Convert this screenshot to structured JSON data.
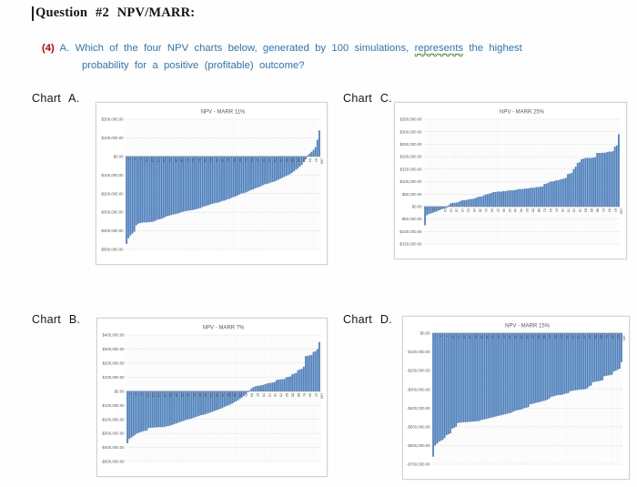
{
  "header": {
    "title": "Question #2 NPV/MARR:"
  },
  "question": {
    "number": "(4)",
    "letter": "A.",
    "line1_start": "Which of the four NPV charts below, generated by 100 simulations,",
    "underlined_word": "represents",
    "line1_end": "the highest",
    "line2": "probability for a positive (profitable) outcome?"
  },
  "colors": {
    "bar": "#4f81bd",
    "question_text": "#2e74b6",
    "question_number": "#c00000",
    "chart_text": "#595959",
    "gridline": "#e0e0e0",
    "zero_line": "#a8a8a8",
    "squiggle": "#52a24a"
  },
  "x_ticks": [
    1,
    4,
    7,
    10,
    13,
    16,
    19,
    22,
    25,
    28,
    31,
    34,
    37,
    40,
    43,
    46,
    49,
    52,
    55,
    58,
    61,
    64,
    67,
    70,
    73,
    76,
    79,
    82,
    85,
    88,
    91,
    94,
    97,
    100
  ],
  "chart_data": [
    {
      "type": "bar",
      "label": "Chart A.",
      "title": "NPV - MARR 11%",
      "xlabel": "",
      "ylabel": "",
      "ylim": [
        -500000,
        200000
      ],
      "y_step": 100000,
      "y_ticks": [
        "$200,000.00",
        "$100,000.00",
        "$0.00",
        "-$100,000.00",
        "-$200,000.00",
        "-$300,000.00",
        "-$400,000.00",
        "-$500,000.00"
      ],
      "x": "simulation 1-100 (sorted ascending)",
      "values": [
        -470000,
        -440000,
        -425000,
        -415000,
        -405000,
        -370000,
        -362000,
        -358000,
        -356000,
        -355000,
        -355000,
        -354000,
        -353000,
        -352000,
        -350000,
        -345000,
        -340000,
        -338000,
        -335000,
        -330000,
        -325000,
        -320000,
        -318000,
        -315000,
        -312000,
        -310000,
        -308000,
        -305000,
        -300000,
        -298000,
        -295000,
        -293000,
        -291000,
        -290000,
        -288000,
        -285000,
        -283000,
        -280000,
        -278000,
        -272000,
        -268000,
        -265000,
        -262000,
        -258000,
        -255000,
        -252000,
        -250000,
        -248000,
        -245000,
        -240000,
        -238000,
        -235000,
        -230000,
        -228000,
        -222000,
        -218000,
        -215000,
        -210000,
        -205000,
        -200000,
        -198000,
        -195000,
        -190000,
        -185000,
        -180000,
        -178000,
        -172000,
        -168000,
        -165000,
        -160000,
        -155000,
        -150000,
        -148000,
        -145000,
        -140000,
        -138000,
        -135000,
        -130000,
        -125000,
        -120000,
        -115000,
        -110000,
        -105000,
        -100000,
        -95000,
        -88000,
        -80000,
        -72000,
        -65000,
        -55000,
        -45000,
        -30000,
        -15000,
        5000,
        15000,
        25000,
        35000,
        50000,
        90000,
        140000
      ]
    },
    {
      "type": "bar",
      "label": "Chart C.",
      "title": "NPV - MARR 25%",
      "xlabel": "",
      "ylabel": "",
      "ylim": [
        -150000,
        350000
      ],
      "y_step": 50000,
      "y_ticks": [
        "$350,000.00",
        "$300,000.00",
        "$250,000.00",
        "$200,000.00",
        "$150,000.00",
        "$100,000.00",
        "$50,000.00",
        "$0.00",
        "-$50,000.00",
        "-$100,000.00",
        "-$150,000.00"
      ],
      "x": "simulation 1-100 (sorted ascending)",
      "values": [
        -75000,
        -35000,
        -30000,
        -28000,
        -25000,
        -22000,
        -20000,
        -15000,
        -12000,
        -10000,
        -8000,
        -5000,
        5000,
        12000,
        15000,
        15000,
        16000,
        18000,
        22000,
        25000,
        25000,
        26000,
        28000,
        30000,
        30000,
        32000,
        35000,
        38000,
        40000,
        40000,
        45000,
        48000,
        50000,
        52000,
        55000,
        58000,
        58000,
        60000,
        60000,
        60000,
        62000,
        62000,
        63000,
        65000,
        65000,
        65000,
        66000,
        68000,
        70000,
        70000,
        70000,
        72000,
        72000,
        73000,
        75000,
        75000,
        76000,
        78000,
        78000,
        80000,
        80000,
        90000,
        92000,
        95000,
        100000,
        100000,
        102000,
        105000,
        105000,
        108000,
        110000,
        112000,
        115000,
        130000,
        132000,
        135000,
        150000,
        160000,
        175000,
        178000,
        190000,
        192000,
        195000,
        195000,
        195000,
        195000,
        196000,
        198000,
        215000,
        215000,
        215000,
        216000,
        216000,
        218000,
        220000,
        220000,
        222000,
        240000,
        245000,
        290000
      ]
    },
    {
      "type": "bar",
      "label": "Chart B.",
      "title": "NPV - MARR 7%",
      "xlabel": "",
      "ylabel": "",
      "ylim": [
        -500000,
        400000
      ],
      "y_step": 100000,
      "y_ticks": [
        "$400,000.00",
        "$300,000.00",
        "$200,000.00",
        "$100,000.00",
        "$0.00",
        "-$100,000.00",
        "-$200,000.00",
        "-$300,000.00",
        "-$400,000.00",
        "-$500,000.00"
      ],
      "x": "simulation 1-100 (sorted ascending)",
      "values": [
        -370000,
        -340000,
        -330000,
        -320000,
        -310000,
        -300000,
        -295000,
        -290000,
        -285000,
        -282000,
        -280000,
        -262000,
        -260000,
        -259000,
        -258000,
        -257000,
        -256000,
        -256000,
        -255000,
        -255000,
        -250000,
        -248000,
        -245000,
        -240000,
        -235000,
        -230000,
        -225000,
        -220000,
        -215000,
        -210000,
        -205000,
        -200000,
        -198000,
        -195000,
        -190000,
        -185000,
        -180000,
        -175000,
        -170000,
        -168000,
        -165000,
        -160000,
        -155000,
        -150000,
        -145000,
        -140000,
        -135000,
        -130000,
        -125000,
        -120000,
        -112000,
        -105000,
        -100000,
        -95000,
        -88000,
        -80000,
        -72000,
        -65000,
        -55000,
        -45000,
        -35000,
        -20000,
        -8000,
        5000,
        20000,
        30000,
        35000,
        38000,
        40000,
        42000,
        45000,
        50000,
        55000,
        58000,
        60000,
        62000,
        65000,
        80000,
        82000,
        85000,
        85000,
        88000,
        100000,
        102000,
        105000,
        120000,
        125000,
        130000,
        150000,
        155000,
        160000,
        175000,
        250000,
        252000,
        255000,
        258000,
        280000,
        285000,
        300000,
        350000
      ]
    },
    {
      "type": "bar",
      "label": "Chart D.",
      "title": "NPV - MARR 15%",
      "xlabel": "",
      "ylabel": "",
      "ylim": [
        -700000,
        0
      ],
      "y_step": 100000,
      "y_ticks": [
        "$0.00",
        "-$100,000.00",
        "-$200,000.00",
        "-$300,000.00",
        "-$400,000.00",
        "-$500,000.00",
        "-$600,000.00",
        "-$700,000.00"
      ],
      "x": "simulation 1-100 (sorted ascending)",
      "values": [
        -660000,
        -600000,
        -590000,
        -580000,
        -575000,
        -570000,
        -560000,
        -545000,
        -540000,
        -535000,
        -510000,
        -505000,
        -500000,
        -480000,
        -478000,
        -477000,
        -476000,
        -475000,
        -475000,
        -474000,
        -473000,
        -472000,
        -471000,
        -470000,
        -470000,
        -465000,
        -462000,
        -460000,
        -458000,
        -455000,
        -452000,
        -450000,
        -448000,
        -445000,
        -442000,
        -440000,
        -438000,
        -435000,
        -432000,
        -430000,
        -428000,
        -425000,
        -420000,
        -415000,
        -412000,
        -410000,
        -408000,
        -405000,
        -400000,
        -398000,
        -395000,
        -380000,
        -378000,
        -375000,
        -372000,
        -370000,
        -368000,
        -365000,
        -362000,
        -360000,
        -355000,
        -350000,
        -340000,
        -338000,
        -335000,
        -332000,
        -330000,
        -330000,
        -328000,
        -325000,
        -322000,
        -320000,
        -310000,
        -308000,
        -305000,
        -305000,
        -303000,
        -302000,
        -300000,
        -300000,
        -298000,
        -295000,
        -285000,
        -280000,
        -262000,
        -260000,
        -258000,
        -256000,
        -254000,
        -252000,
        -230000,
        -228000,
        -226000,
        -224000,
        -222000,
        -205000,
        -200000,
        -195000,
        -190000,
        -155000
      ]
    }
  ]
}
